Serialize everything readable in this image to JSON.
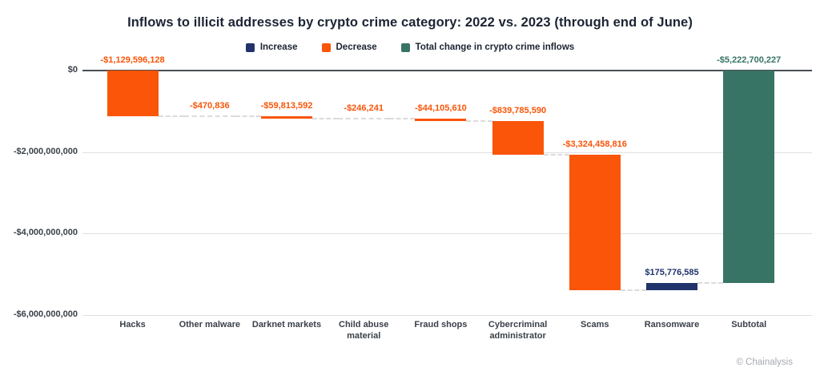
{
  "title": "Inflows to illicit addresses by crypto crime category: 2022 vs. 2023 (through end of June)",
  "footer": {
    "credit": "© Chainalysis"
  },
  "legend": {
    "items": [
      {
        "key": "increase",
        "label": "Increase",
        "color": "#21336B"
      },
      {
        "key": "decrease",
        "label": "Decrease",
        "color": "#FA5508"
      },
      {
        "key": "total",
        "label": "Total change in crypto crime inflows",
        "color": "#387465"
      }
    ]
  },
  "chart_data": {
    "type": "bar",
    "subtype": "waterfall",
    "title": "Inflows to illicit addresses by crypto crime category: 2022 vs. 2023 (through end of June)",
    "categories": [
      "Hacks",
      "Other malware",
      "Darknet markets",
      "Child abuse material",
      "Fraud shops",
      "Cybercriminal administrator",
      "Scams",
      "Ransomware",
      "Subtotal"
    ],
    "values": [
      -1129596128,
      -470836,
      -59813592,
      -246241,
      -44105610,
      -839785590,
      -3324458816,
      175776585,
      -5222700227
    ],
    "value_labels": [
      "-$1,129,596,128",
      "-$470,836",
      "-$59,813,592",
      "-$246,241",
      "-$44,105,610",
      "-$839,785,590",
      "-$3,324,458,816",
      "$175,776,585",
      "-$5,222,700,227"
    ],
    "bar_types": [
      "decrease",
      "decrease",
      "decrease",
      "decrease",
      "decrease",
      "decrease",
      "decrease",
      "increase",
      "total"
    ],
    "colors": {
      "increase": "#21336B",
      "decrease": "#FA5508",
      "total": "#387465"
    },
    "xlabel": "",
    "ylabel": "",
    "ylim": [
      -6000000000,
      0
    ],
    "y_ticks": [
      {
        "value": 0,
        "label": "$0"
      },
      {
        "value": -2000000000,
        "label": "-$2,000,000,000"
      },
      {
        "value": -4000000000,
        "label": "-$4,000,000,000"
      },
      {
        "value": -6000000000,
        "label": "-$6,000,000,000"
      }
    ],
    "grid": true,
    "legend_position": "top"
  }
}
